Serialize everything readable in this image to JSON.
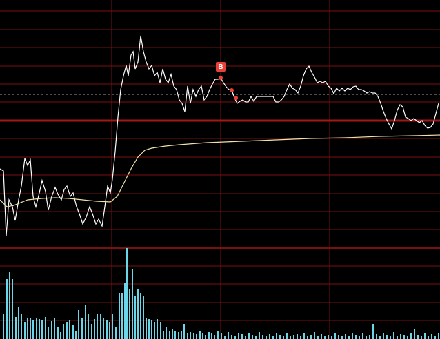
{
  "chart_data": {
    "type": "line",
    "xlim": [
      0,
      638
    ],
    "ylim": [
      0,
      360
    ],
    "yticks": [
      27,
      53,
      79,
      106,
      132,
      159,
      185,
      212,
      238,
      264,
      291,
      317,
      344
    ],
    "xticks": [
      162,
      320,
      478
    ],
    "baseline": 185,
    "reference_line": 223,
    "grid": true,
    "grid_color": "#7a1010",
    "series": [
      {
        "color": "#ffffff",
        "x": [
          0,
          5,
          9,
          13,
          18,
          22,
          27,
          31,
          36,
          40,
          44,
          48,
          52,
          57,
          61,
          66,
          70,
          75,
          80,
          84,
          89,
          93,
          97,
          102,
          106,
          111,
          115,
          120,
          125,
          130,
          134,
          139,
          143,
          148,
          152,
          156,
          160,
          163,
          167,
          171,
          175,
          179,
          183,
          186,
          190,
          193,
          196,
          200,
          204,
          208,
          212,
          216,
          220,
          224,
          228,
          232,
          236,
          240,
          244,
          248,
          252,
          256,
          260,
          264,
          268,
          272,
          276,
          280,
          284,
          288,
          292,
          296,
          300,
          304,
          308,
          312,
          316,
          320,
          324,
          328,
          332,
          336,
          340,
          344,
          348,
          352,
          356,
          360,
          364,
          368,
          372,
          376,
          380,
          384,
          388,
          392,
          396,
          400,
          404,
          408,
          412,
          416,
          420,
          424,
          428,
          432,
          436,
          440,
          444,
          448,
          452,
          456,
          460,
          464,
          468,
          472,
          476,
          480,
          484,
          488,
          492,
          496,
          500,
          504,
          508,
          512,
          516,
          520,
          524,
          528,
          532,
          536,
          540,
          544,
          548,
          552,
          556,
          560,
          564,
          568,
          572,
          576,
          580,
          584,
          588,
          592,
          596,
          600,
          604,
          608,
          612,
          616,
          620,
          624,
          628,
          632,
          636
        ],
        "values": [
          115,
          112,
          18,
          70,
          60,
          40,
          70,
          90,
          130,
          120,
          128,
          75,
          60,
          80,
          98,
          82,
          55,
          75,
          88,
          78,
          70,
          85,
          90,
          75,
          80,
          60,
          50,
          35,
          45,
          60,
          50,
          35,
          42,
          32,
          60,
          90,
          80,
          100,
          140,
          190,
          230,
          250,
          265,
          250,
          280,
          285,
          260,
          270,
          308,
          285,
          270,
          260,
          265,
          250,
          255,
          240,
          260,
          245,
          240,
          252,
          235,
          230,
          215,
          210,
          198,
          235,
          210,
          230,
          220,
          230,
          235,
          215,
          220,
          230,
          238,
          245,
          245,
          247,
          240,
          234,
          230,
          229,
          218,
          210,
          213,
          215,
          212,
          212,
          220,
          213,
          220,
          220,
          220,
          220,
          220,
          220,
          220,
          212,
          212,
          215,
          220,
          230,
          238,
          232,
          230,
          225,
          235,
          250,
          260,
          264,
          255,
          248,
          240,
          242,
          240,
          242,
          235,
          232,
          224,
          232,
          228,
          232,
          228,
          232,
          230,
          234,
          235,
          230,
          230,
          228,
          225,
          227,
          225,
          225,
          220,
          210,
          198,
          188,
          180,
          173,
          185,
          200,
          208,
          205,
          190,
          188,
          185,
          188,
          185,
          182,
          185,
          178,
          174,
          175,
          180,
          195,
          210
        ]
      },
      {
        "color": "#f0e2a8",
        "x": [
          0,
          10,
          20,
          40,
          60,
          80,
          100,
          120,
          140,
          160,
          170,
          180,
          190,
          200,
          210,
          220,
          240,
          260,
          300,
          350,
          400,
          450,
          500,
          550,
          600,
          638
        ],
        "values": [
          70,
          60,
          62,
          70,
          72,
          73,
          72,
          70,
          68,
          67,
          75,
          95,
          115,
          132,
          142,
          145,
          148,
          150,
          153,
          155,
          157,
          159,
          160,
          162,
          163,
          164
        ]
      }
    ],
    "markers": [
      {
        "label": "B",
        "x": 320,
        "y": 247,
        "color": "#e8413a"
      },
      {
        "x": 336,
        "y": 229,
        "color": "#e8413a"
      },
      {
        "x": 342,
        "y": 218,
        "color": "#e8413a"
      }
    ],
    "volume": {
      "type": "bar",
      "color": "#6ad6e8",
      "ylim": [
        0,
        132
      ],
      "yticks": [
        27,
        53,
        80,
        106
      ],
      "x": [
        5,
        10,
        14,
        18,
        23,
        27,
        31,
        36,
        40,
        44,
        48,
        53,
        57,
        61,
        66,
        70,
        75,
        79,
        84,
        88,
        92,
        97,
        101,
        106,
        110,
        114,
        119,
        124,
        128,
        133,
        137,
        141,
        146,
        150,
        155,
        159,
        163,
        168,
        173,
        177,
        181,
        184,
        188,
        192,
        196,
        200,
        204,
        208,
        212,
        216,
        220,
        224,
        228,
        233,
        237,
        241,
        246,
        250,
        254,
        259,
        263,
        267,
        272,
        276,
        281,
        285,
        290,
        294,
        298,
        303,
        307,
        311,
        316,
        321,
        326,
        331,
        336,
        341,
        346,
        351,
        356,
        361,
        366,
        371,
        376,
        381,
        386,
        391,
        396,
        401,
        406,
        411,
        416,
        421,
        426,
        431,
        436,
        441,
        446,
        451,
        456,
        461,
        466,
        471,
        476,
        481,
        486,
        491,
        496,
        501,
        506,
        511,
        516,
        521,
        526,
        531,
        536,
        541,
        546,
        551,
        556,
        561,
        566,
        571,
        576,
        581,
        586,
        591,
        596,
        601,
        606,
        611,
        616,
        621,
        626,
        631,
        636
      ],
      "values": [
        37,
        87,
        97,
        87,
        32,
        47,
        37,
        24,
        30,
        30,
        27,
        30,
        29,
        27,
        32,
        17,
        26,
        30,
        17,
        10,
        22,
        25,
        27,
        20,
        12,
        42,
        30,
        49,
        37,
        22,
        29,
        37,
        37,
        30,
        27,
        25,
        37,
        17,
        67,
        67,
        82,
        132,
        72,
        102,
        62,
        72,
        67,
        62,
        30,
        29,
        27,
        24,
        29,
        24,
        12,
        17,
        12,
        14,
        12,
        10,
        12,
        22,
        8,
        10,
        8,
        7,
        12,
        8,
        6,
        10,
        8,
        6,
        12,
        8,
        5,
        10,
        6,
        4,
        9,
        7,
        5,
        8,
        6,
        4,
        10,
        6,
        5,
        7,
        4,
        8,
        6,
        5,
        9,
        4,
        6,
        7,
        5,
        8,
        4,
        6,
        10,
        5,
        7,
        4,
        6,
        5,
        8,
        6,
        4,
        7,
        5,
        9,
        6,
        4,
        8,
        5,
        6,
        22,
        7,
        5,
        8,
        6,
        4,
        10,
        5,
        7,
        6,
        4,
        8,
        14,
        6,
        5,
        9,
        4,
        7,
        5,
        8
      ]
    }
  }
}
